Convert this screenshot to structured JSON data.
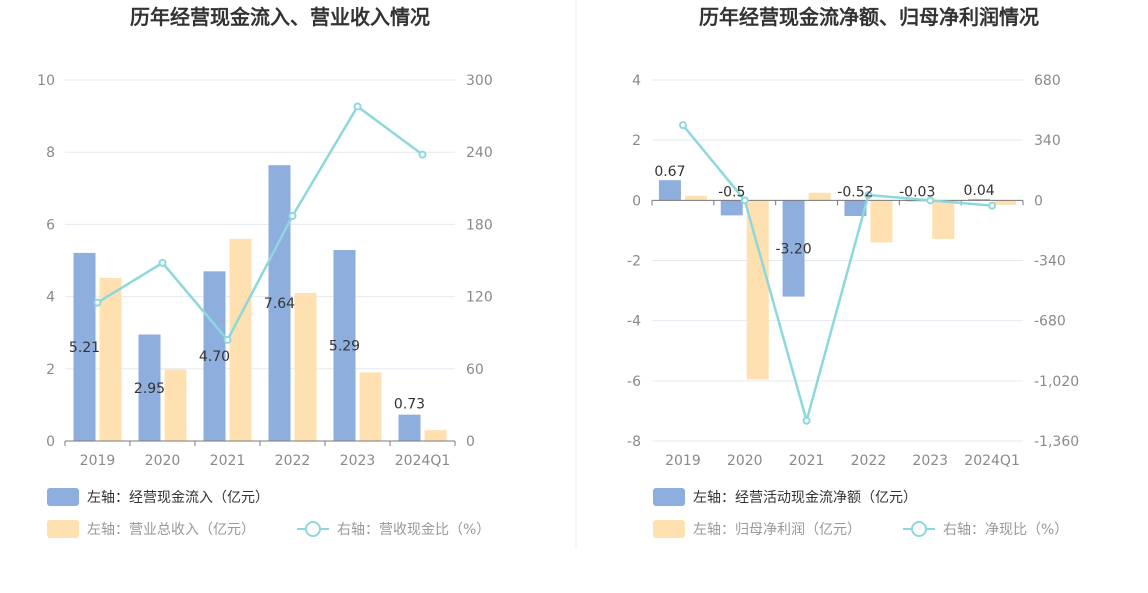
{
  "charts": [
    {
      "title": "历年经营现金流入、营业收入情况",
      "legend": [
        {
          "marker": "bar",
          "color": "#8eaedd",
          "text": "左轴：经营现金流入（亿元）",
          "text_color": "#333333"
        },
        {
          "marker": "bar",
          "color": "#ffe0b0",
          "text": "左轴：营业总收入（亿元）",
          "text_color": "#999999"
        },
        {
          "marker": "line",
          "color": "#8dd8dc",
          "text": "右轴：营收现金比（%）",
          "text_color": "#999999"
        }
      ]
    },
    {
      "title": "历年经营现金流净额、归母净利润情况",
      "legend": [
        {
          "marker": "bar",
          "color": "#8eaedd",
          "text": "左轴：经营活动现金流净额（亿元）",
          "text_color": "#333333"
        },
        {
          "marker": "bar",
          "color": "#ffe0b0",
          "text": "左轴：归母净利润（亿元）",
          "text_color": "#999999"
        },
        {
          "marker": "line",
          "color": "#8dd8dc",
          "text": "右轴：净现比（%）",
          "text_color": "#999999"
        }
      ]
    }
  ],
  "chart_data": [
    {
      "type": "bar",
      "title": "历年经营现金流入、营业收入情况",
      "categories": [
        "2019",
        "2020",
        "2021",
        "2022",
        "2023",
        "2024Q1"
      ],
      "left_axis": {
        "min": 0,
        "max": 10,
        "ticks": [
          "0",
          "2",
          "4",
          "6",
          "8",
          "10"
        ]
      },
      "right_axis": {
        "min": 0,
        "max": 300,
        "ticks": [
          "0",
          "60",
          "120",
          "180",
          "240",
          "300"
        ]
      },
      "grid": true,
      "legend_position": "bottom-left",
      "series": [
        {
          "name": "左轴：经营现金流入（亿元）",
          "type": "bar",
          "axis": "left",
          "color": "#8eaedd",
          "values": [
            5.21,
            2.95,
            4.7,
            7.64,
            5.29,
            0.73
          ],
          "labels": [
            "5.21",
            "2.95",
            "4.70",
            "7.64",
            "5.29",
            "0.73"
          ]
        },
        {
          "name": "左轴：营业总收入（亿元）",
          "type": "bar",
          "axis": "left",
          "color": "#ffe0b0",
          "values": [
            4.52,
            1.98,
            5.6,
            4.1,
            1.9,
            0.3
          ]
        },
        {
          "name": "右轴：营收现金比（%）",
          "type": "line",
          "axis": "right",
          "color": "#8dd8dc",
          "values": [
            115,
            148,
            84,
            187,
            278,
            238
          ]
        }
      ]
    },
    {
      "type": "bar",
      "title": "历年经营现金流净额、归母净利润情况",
      "categories": [
        "2019",
        "2020",
        "2021",
        "2022",
        "2023",
        "2024Q1"
      ],
      "left_axis": {
        "min": -8,
        "max": 4,
        "ticks": [
          "-8",
          "-6",
          "-4",
          "-2",
          "0",
          "2",
          "4"
        ]
      },
      "right_axis": {
        "min": -1360,
        "max": 680,
        "ticks": [
          "-1,360",
          "-1,020",
          "-680",
          "-340",
          "0",
          "340",
          "680"
        ]
      },
      "grid": true,
      "legend_position": "bottom-left",
      "series": [
        {
          "name": "左轴：经营活动现金流净额（亿元）",
          "type": "bar",
          "axis": "left",
          "color": "#8eaedd",
          "values": [
            0.67,
            -0.5,
            -3.2,
            -0.52,
            -0.03,
            0.04
          ],
          "labels": [
            "0.67",
            "-0.5",
            "-3.20",
            "-0.52",
            "-0.03",
            "0.04"
          ]
        },
        {
          "name": "左轴：归母净利润（亿元）",
          "type": "bar",
          "axis": "left",
          "color": "#ffe0b0",
          "values": [
            0.15,
            -5.95,
            0.25,
            -1.4,
            -1.28,
            -0.15
          ]
        },
        {
          "name": "右轴：净现比（%）",
          "type": "line",
          "axis": "right",
          "color": "#8dd8dc",
          "values": [
            425,
            0,
            -1245,
            30,
            0,
            -30
          ]
        }
      ]
    }
  ]
}
